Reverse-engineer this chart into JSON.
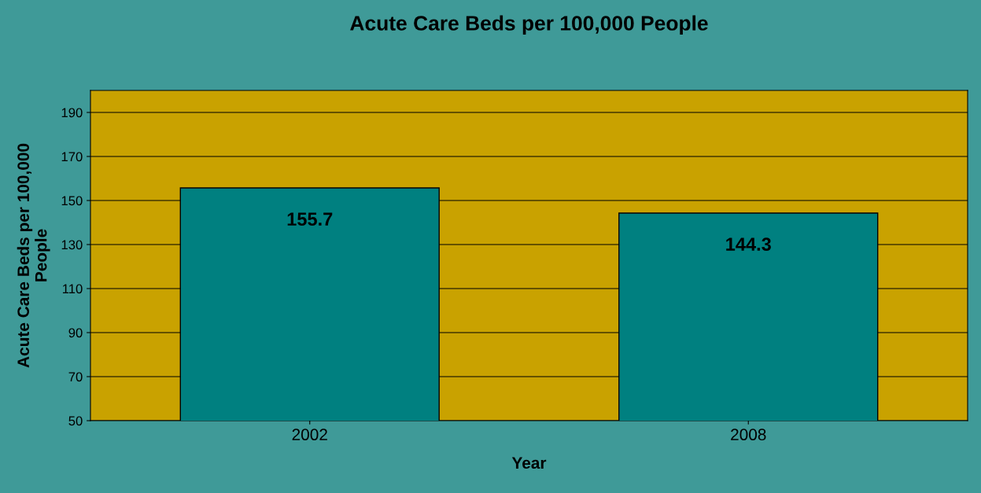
{
  "chart_data": {
    "type": "bar",
    "title": "Acute Care Beds per 100,000 People",
    "xlabel": "Year",
    "ylabel": "Acute Care Beds per 100,000\nPeople",
    "categories": [
      "2002",
      "2008"
    ],
    "values": [
      155.7,
      144.3
    ],
    "color": "#008080",
    "ylim": [
      50,
      200
    ],
    "yticks": [
      50,
      70,
      90,
      110,
      130,
      150,
      170,
      190
    ],
    "grid": "y",
    "data_labels": true
  }
}
